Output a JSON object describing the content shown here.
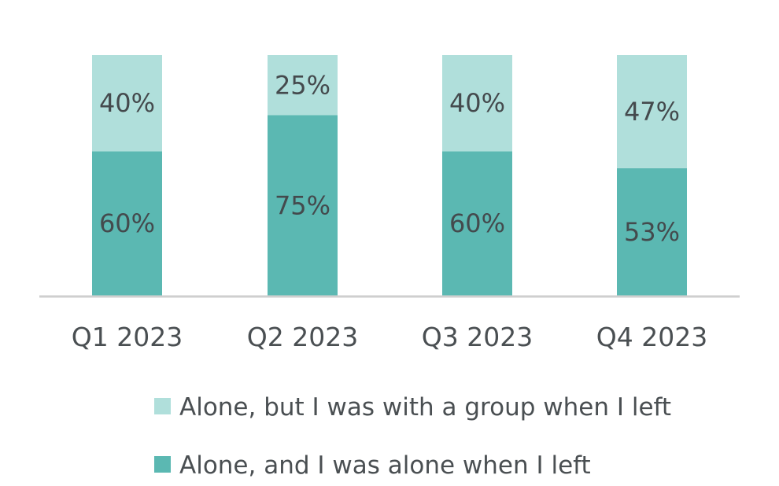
{
  "chart_data": {
    "type": "bar",
    "stacked": true,
    "categories": [
      "Q1 2023",
      "Q2 2023",
      "Q3 2023",
      "Q4 2023"
    ],
    "series": [
      {
        "name": "Alone, and I was alone when I left",
        "values": [
          60,
          75,
          60,
          53
        ],
        "labels": [
          "60%",
          "75%",
          "60%",
          "53%"
        ],
        "color": "#5bb8b2"
      },
      {
        "name": "Alone, but I was with a group when I left",
        "values": [
          40,
          25,
          40,
          47
        ],
        "labels": [
          "40%",
          "25%",
          "40%",
          "47%"
        ],
        "color": "#b0dfdb"
      }
    ],
    "ylim": [
      0,
      100
    ],
    "grid": false,
    "legend_position": "bottom",
    "legend_order": [
      "Alone, but I was with a group when I left",
      "Alone, and I was alone when I left"
    ],
    "axis_color": "#cfcfcf",
    "text_color": "#4a4f52"
  }
}
